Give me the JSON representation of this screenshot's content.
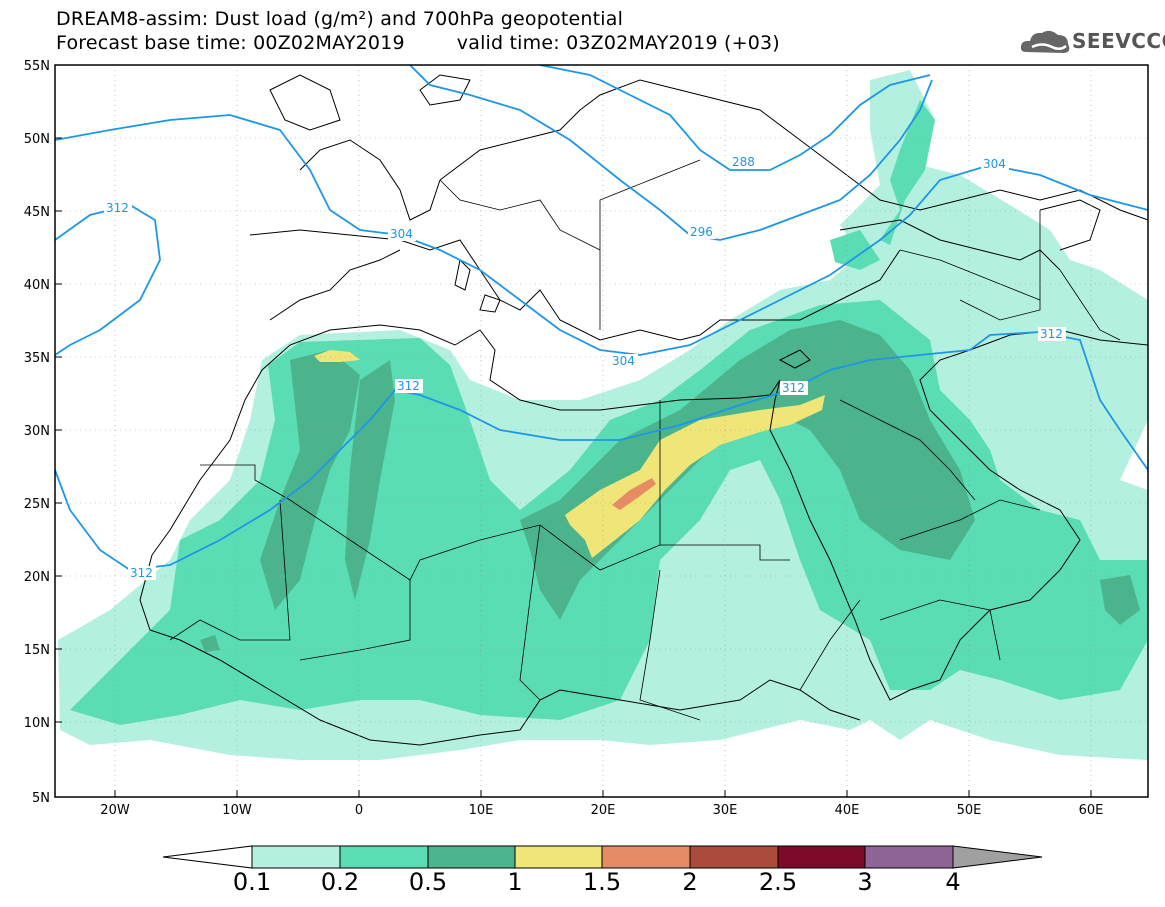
{
  "title": {
    "line1": "DREAM8-assim: Dust load (g/m²) and 700hPa geopotential",
    "base_label": "Forecast base time: 00Z02MAY2019",
    "valid_label": "valid time: 03Z02MAY2019 (+03)"
  },
  "logo": {
    "text": "SEEVCCC",
    "icon": "cloud-icon"
  },
  "map": {
    "lat_ticks": [
      "55N",
      "50N",
      "45N",
      "40N",
      "35N",
      "30N",
      "25N",
      "20N",
      "15N",
      "10N",
      "5N"
    ],
    "lon_ticks": [
      "20W",
      "10W",
      "0",
      "10E",
      "20E",
      "30E",
      "40E",
      "50E",
      "60E"
    ],
    "contour_labels": [
      "288",
      "296",
      "304",
      "304",
      "304",
      "312",
      "312",
      "312",
      "312",
      "312"
    ]
  },
  "colorbar": {
    "labels": [
      "0.1",
      "0.2",
      "0.5",
      "1",
      "1.5",
      "2",
      "2.5",
      "3",
      "4"
    ],
    "colors": [
      "#ffffff",
      "#b4f0e0",
      "#5adcb4",
      "#4bb48c",
      "#f0e678",
      "#e68c64",
      "#aa4b3c",
      "#7d0a28",
      "#8c6496",
      "#a0a0a0"
    ]
  },
  "colors": {
    "light": "#b4f0e0",
    "mid": "#5adcb4",
    "dark": "#4bb48c",
    "yellow": "#f0e678",
    "orange": "#e68c64",
    "contour": "#1e96e6"
  }
}
